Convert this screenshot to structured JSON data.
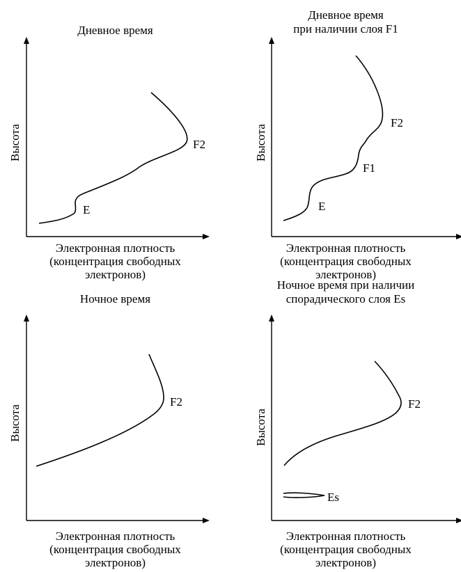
{
  "panels": [
    {
      "title_lines": [
        "Дневное время"
      ],
      "ylabel": "Высота",
      "xlabel_lines": [
        "Электронная плотность",
        "(концентрация свободных",
        "электронов)"
      ],
      "layers": [
        "F2",
        "E"
      ]
    },
    {
      "title_lines": [
        "Дневное время",
        "при наличии слоя F1"
      ],
      "ylabel": "Высота",
      "xlabel_lines": [
        "Электронная плотность",
        "(концентрация свободных",
        "электронов)"
      ],
      "layers": [
        "F2",
        "F1",
        "E"
      ]
    },
    {
      "title_lines": [
        "Ночное время"
      ],
      "ylabel": "Высота",
      "xlabel_lines": [
        "Электронная плотность",
        "(концентрация свободных",
        "электронов)"
      ],
      "layers": [
        "F2"
      ]
    },
    {
      "title_lines": [
        "Ночное время при наличии",
        "спорадического слоя Es"
      ],
      "ylabel": "Высота",
      "xlabel_lines": [
        "Электронная плотность",
        "(концентрация свободных",
        "электронов)"
      ],
      "layers": [
        "F2",
        "Es"
      ]
    }
  ]
}
